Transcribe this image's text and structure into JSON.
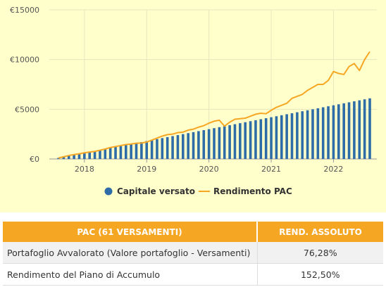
{
  "chart_data": {
    "type": "bar+line",
    "currency_prefix": "€",
    "y_ticks": [
      0,
      5000,
      10000,
      15000
    ],
    "y_tick_labels": [
      "€0",
      "€5000",
      "€10000",
      "€15000"
    ],
    "ylim": [
      0,
      15000
    ],
    "x_tick_labels": [
      "2018",
      "2019",
      "2020",
      "2021",
      "2022"
    ],
    "x_start": "2017-08",
    "x_end": "2022-08",
    "legend_placement": "bottom-center",
    "grid": true,
    "series": [
      {
        "name": "Capitale versato",
        "type": "bar",
        "color": "#2e6ca8",
        "x": [
          "2017-08",
          "2017-09",
          "2017-10",
          "2017-11",
          "2017-12",
          "2018-01",
          "2018-02",
          "2018-03",
          "2018-04",
          "2018-05",
          "2018-06",
          "2018-07",
          "2018-08",
          "2018-09",
          "2018-10",
          "2018-11",
          "2018-12",
          "2019-01",
          "2019-02",
          "2019-03",
          "2019-04",
          "2019-05",
          "2019-06",
          "2019-07",
          "2019-08",
          "2019-09",
          "2019-10",
          "2019-11",
          "2019-12",
          "2020-01",
          "2020-02",
          "2020-03",
          "2020-04",
          "2020-05",
          "2020-06",
          "2020-07",
          "2020-08",
          "2020-09",
          "2020-10",
          "2020-11",
          "2020-12",
          "2021-01",
          "2021-02",
          "2021-03",
          "2021-04",
          "2021-05",
          "2021-06",
          "2021-07",
          "2021-08",
          "2021-09",
          "2021-10",
          "2021-11",
          "2021-12",
          "2022-01",
          "2022-02",
          "2022-03",
          "2022-04",
          "2022-05",
          "2022-06",
          "2022-07",
          "2022-08"
        ],
        "values": [
          100,
          200,
          300,
          400,
          500,
          600,
          700,
          800,
          900,
          1000,
          1100,
          1200,
          1300,
          1400,
          1500,
          1600,
          1700,
          1800,
          1900,
          2000,
          2100,
          2200,
          2300,
          2400,
          2500,
          2600,
          2700,
          2800,
          2900,
          3000,
          3100,
          3200,
          3300,
          3400,
          3500,
          3600,
          3700,
          3800,
          3900,
          4000,
          4100,
          4200,
          4300,
          4400,
          4500,
          4600,
          4700,
          4800,
          4900,
          5000,
          5100,
          5200,
          5300,
          5400,
          5500,
          5600,
          5700,
          5800,
          5900,
          6000,
          6100
        ]
      },
      {
        "name": "Rendimento PAC",
        "type": "line",
        "color": "#f5a623",
        "x": [
          "2017-08",
          "2017-09",
          "2017-10",
          "2017-11",
          "2017-12",
          "2018-01",
          "2018-02",
          "2018-03",
          "2018-04",
          "2018-05",
          "2018-06",
          "2018-07",
          "2018-08",
          "2018-09",
          "2018-10",
          "2018-11",
          "2018-12",
          "2019-01",
          "2019-02",
          "2019-03",
          "2019-04",
          "2019-05",
          "2019-06",
          "2019-07",
          "2019-08",
          "2019-09",
          "2019-10",
          "2019-11",
          "2019-12",
          "2020-01",
          "2020-02",
          "2020-03",
          "2020-04",
          "2020-05",
          "2020-06",
          "2020-07",
          "2020-08",
          "2020-09",
          "2020-10",
          "2020-11",
          "2020-12",
          "2021-01",
          "2021-02",
          "2021-03",
          "2021-04",
          "2021-05",
          "2021-06",
          "2021-07",
          "2021-08",
          "2021-09",
          "2021-10",
          "2021-11",
          "2021-12",
          "2022-01",
          "2022-02",
          "2022-03",
          "2022-04",
          "2022-05",
          "2022-06",
          "2022-07",
          "2022-08"
        ],
        "values": [
          100,
          220,
          350,
          440,
          520,
          620,
          700,
          760,
          880,
          1000,
          1150,
          1250,
          1350,
          1450,
          1500,
          1580,
          1600,
          1700,
          1900,
          2100,
          2300,
          2450,
          2500,
          2650,
          2700,
          2900,
          3000,
          3200,
          3350,
          3600,
          3800,
          3900,
          3300,
          3700,
          4000,
          4050,
          4100,
          4300,
          4500,
          4600,
          4550,
          4900,
          5200,
          5400,
          5600,
          6100,
          6300,
          6500,
          6900,
          7200,
          7500,
          7500,
          7900,
          8800,
          8600,
          8500,
          9300,
          9600,
          8900,
          10000,
          10800
        ]
      }
    ]
  },
  "table": {
    "headers": [
      "PAC (61 VERSAMENTI)",
      "REND. ASSOLUTO"
    ],
    "rows": [
      {
        "label": "Portafoglio Avvalorato (Valore portafoglio - Versamenti)",
        "value": "76,28%"
      },
      {
        "label": "Rendimento del Piano di Accumulo",
        "value": "152,50%"
      }
    ]
  }
}
